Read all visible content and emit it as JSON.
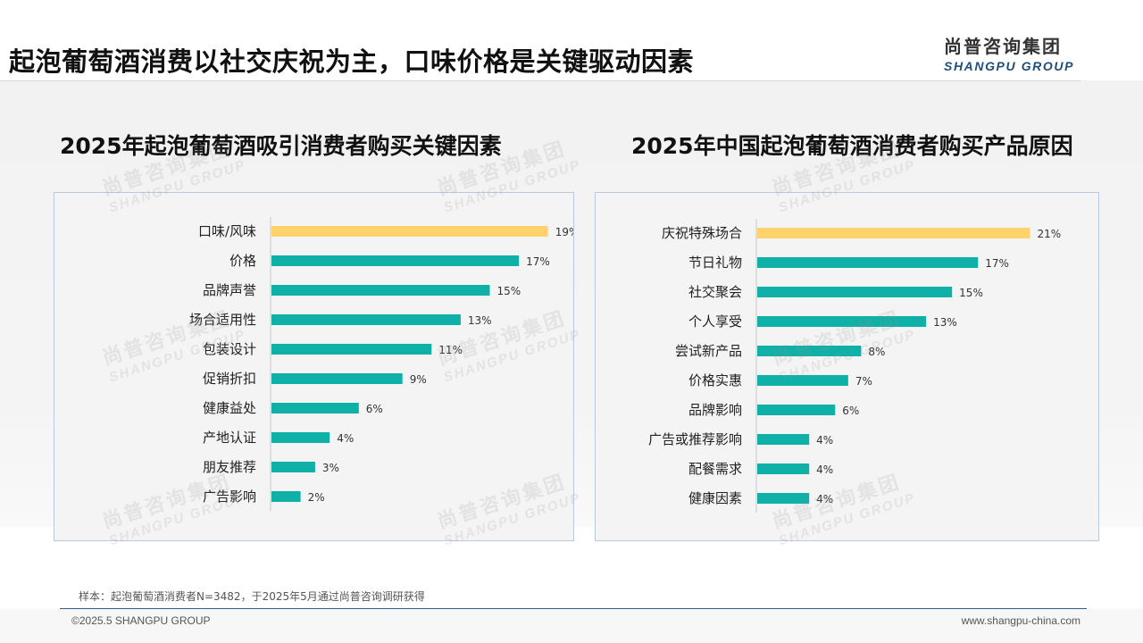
{
  "header": {
    "title": "起泡葡萄酒消费以社交庆祝为主，口味价格是关键驱动因素",
    "logo_cn": "尚普咨询集团",
    "logo_en": "SHANGPU GROUP"
  },
  "watermark": {
    "cn": "尚普咨询集团",
    "en": "SHANGPU GROUP"
  },
  "colors": {
    "highlight": "#FFD26B",
    "bar": "#0EB0A7",
    "axis": "#c8c8c8"
  },
  "chart_data": [
    {
      "type": "bar",
      "orientation": "horizontal",
      "title": "2025年起泡葡萄酒吸引消费者购买关键因素",
      "categories": [
        "口味/风味",
        "价格",
        "品牌声誉",
        "场合适用性",
        "包装设计",
        "促销折扣",
        "健康益处",
        "产地认证",
        "朋友推荐",
        "广告影响"
      ],
      "values": [
        19,
        17,
        15,
        13,
        11,
        9,
        6,
        4,
        3,
        2
      ],
      "value_labels": [
        "19%",
        "17%",
        "15%",
        "13%",
        "11%",
        "9%",
        "6%",
        "4%",
        "3%",
        "2%"
      ],
      "unit": "%",
      "highlight_index": 0,
      "xlim": [
        0,
        20
      ],
      "grid": false
    },
    {
      "type": "bar",
      "orientation": "horizontal",
      "title": "2025年中国起泡葡萄酒消费者购买产品原因",
      "categories": [
        "庆祝特殊场合",
        "节日礼物",
        "社交聚会",
        "个人享受",
        "尝试新产品",
        "价格实惠",
        "品牌影响",
        "广告或推荐影响",
        "配餐需求",
        "健康因素"
      ],
      "values": [
        21,
        17,
        15,
        13,
        8,
        7,
        6,
        4,
        4,
        4
      ],
      "value_labels": [
        "21%",
        "17%",
        "15%",
        "13%",
        "8%",
        "7%",
        "6%",
        "4%",
        "4%",
        "4%"
      ],
      "unit": "%",
      "highlight_index": 0,
      "xlim": [
        0,
        22
      ],
      "grid": false
    }
  ],
  "footer": {
    "sample_note": "样本：起泡葡萄酒消费者N=3482，于2025年5月通过尚普咨询调研获得",
    "copyright": "©2025.5 SHANGPU GROUP",
    "website": "www.shangpu-china.com"
  }
}
